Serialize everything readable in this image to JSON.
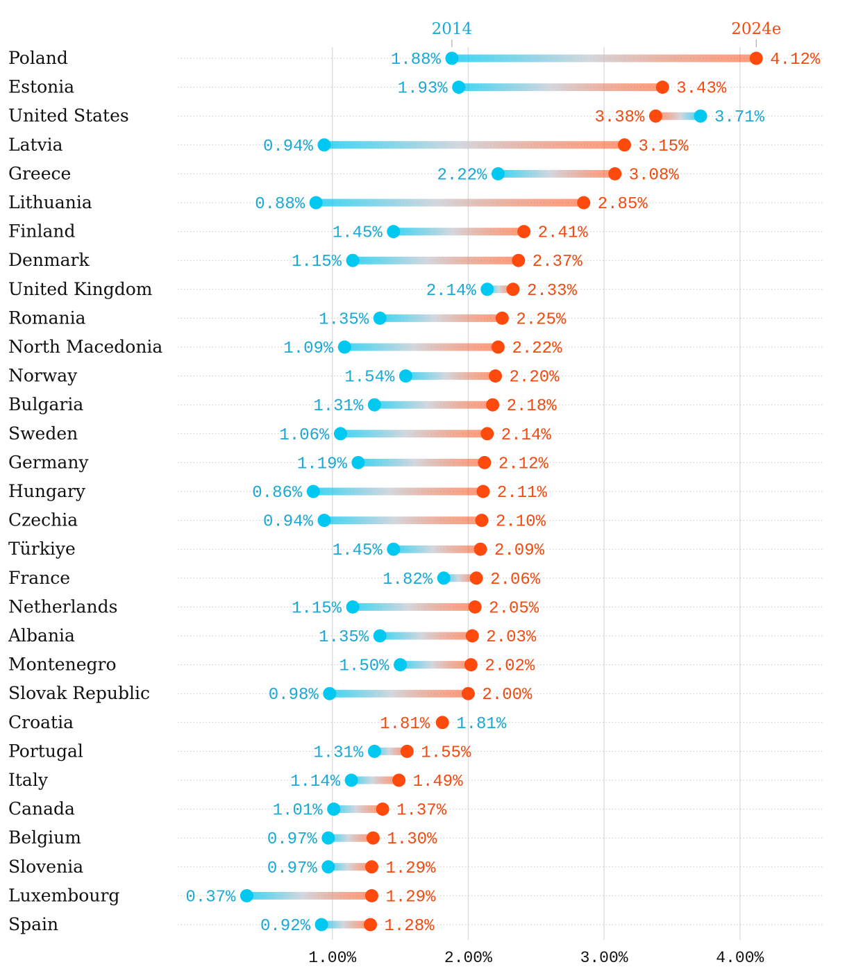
{
  "chart_data": {
    "type": "dumbbell",
    "title": "",
    "series": [
      {
        "name": "2014",
        "color": "#00c8f0",
        "label_color": "#1aa8d6"
      },
      {
        "name": "2024e",
        "color": "#ff4a0e",
        "label_color": "#f24a10"
      }
    ],
    "xlim": [
      0,
      4.6
    ],
    "xticks": [
      1,
      2,
      3,
      4
    ],
    "xtick_labels": [
      "1.00%",
      "2.00%",
      "3.00%",
      "4.00%"
    ],
    "grid": true,
    "countries": [
      {
        "name": "Poland",
        "v2014": 1.88,
        "v2024": 4.12
      },
      {
        "name": "Estonia",
        "v2014": 1.93,
        "v2024": 3.43
      },
      {
        "name": "United States",
        "v2014": 3.71,
        "v2024": 3.38
      },
      {
        "name": "Latvia",
        "v2014": 0.94,
        "v2024": 3.15
      },
      {
        "name": "Greece",
        "v2014": 2.22,
        "v2024": 3.08
      },
      {
        "name": "Lithuania",
        "v2014": 0.88,
        "v2024": 2.85
      },
      {
        "name": "Finland",
        "v2014": 1.45,
        "v2024": 2.41
      },
      {
        "name": "Denmark",
        "v2014": 1.15,
        "v2024": 2.37
      },
      {
        "name": "United Kingdom",
        "v2014": 2.14,
        "v2024": 2.33
      },
      {
        "name": "Romania",
        "v2014": 1.35,
        "v2024": 2.25
      },
      {
        "name": "North Macedonia",
        "v2014": 1.09,
        "v2024": 2.22
      },
      {
        "name": "Norway",
        "v2014": 1.54,
        "v2024": 2.2
      },
      {
        "name": "Bulgaria",
        "v2014": 1.31,
        "v2024": 2.18
      },
      {
        "name": "Sweden",
        "v2014": 1.06,
        "v2024": 2.14
      },
      {
        "name": "Germany",
        "v2014": 1.19,
        "v2024": 2.12
      },
      {
        "name": "Hungary",
        "v2014": 0.86,
        "v2024": 2.11
      },
      {
        "name": "Czechia",
        "v2014": 0.94,
        "v2024": 2.1
      },
      {
        "name": "Türkiye",
        "v2014": 1.45,
        "v2024": 2.09
      },
      {
        "name": "France",
        "v2014": 1.82,
        "v2024": 2.06
      },
      {
        "name": "Netherlands",
        "v2014": 1.15,
        "v2024": 2.05
      },
      {
        "name": "Albania",
        "v2014": 1.35,
        "v2024": 2.03
      },
      {
        "name": "Montenegro",
        "v2014": 1.5,
        "v2024": 2.02
      },
      {
        "name": "Slovak Republic",
        "v2014": 0.98,
        "v2024": 2.0
      },
      {
        "name": "Croatia",
        "v2014": 1.81,
        "v2024": 1.81
      },
      {
        "name": "Portugal",
        "v2014": 1.31,
        "v2024": 1.55
      },
      {
        "name": "Italy",
        "v2014": 1.14,
        "v2024": 1.49
      },
      {
        "name": "Canada",
        "v2014": 1.01,
        "v2024": 1.37
      },
      {
        "name": "Belgium",
        "v2014": 0.97,
        "v2024": 1.3
      },
      {
        "name": "Slovenia",
        "v2014": 0.97,
        "v2024": 1.29
      },
      {
        "name": "Luxembourg",
        "v2014": 0.37,
        "v2024": 1.29
      },
      {
        "name": "Spain",
        "v2014": 0.92,
        "v2024": 1.28
      }
    ]
  }
}
